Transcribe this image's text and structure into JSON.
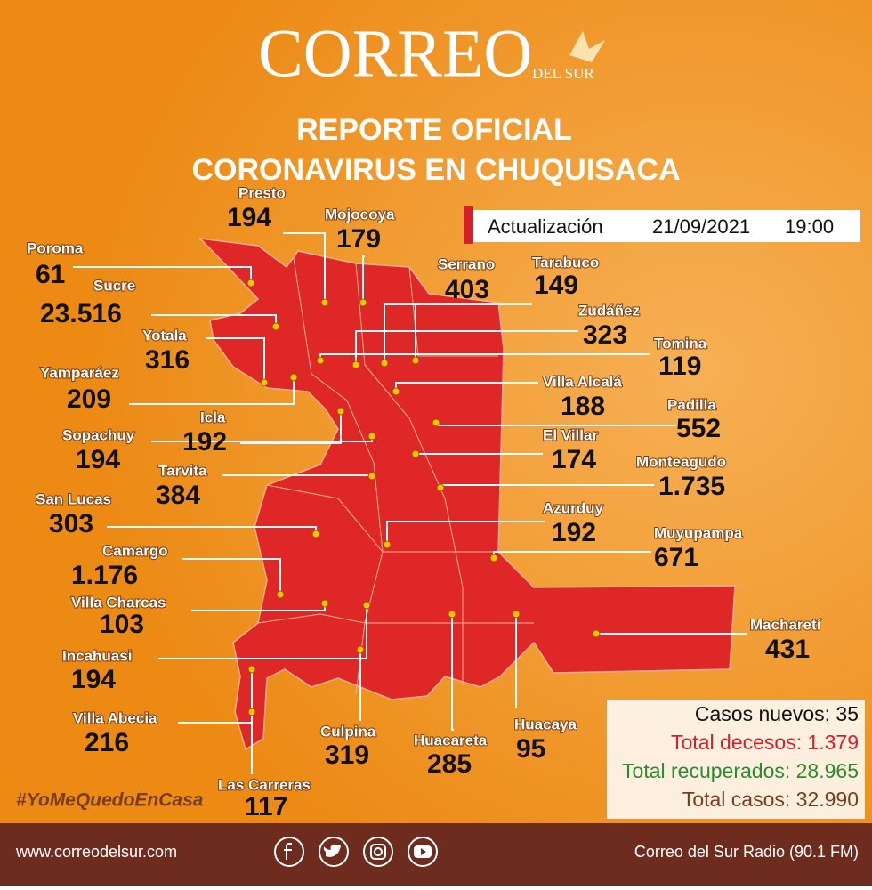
{
  "header": {
    "logo": "CORREO",
    "logo_sub": "DEL SUR",
    "title_line1": "REPORTE OFICIAL",
    "title_line2": "CORONAVIRUS EN CHUQUISACA"
  },
  "update": {
    "label": "Actualización",
    "date": "21/09/2021",
    "time": "19:00"
  },
  "municipalities": [
    {
      "name": "Presto",
      "cases": "194"
    },
    {
      "name": "Mojocoya",
      "cases": "179"
    },
    {
      "name": "Poroma",
      "cases": "61"
    },
    {
      "name": "Sucre",
      "cases": "23.516"
    },
    {
      "name": "Serrano",
      "cases": "403"
    },
    {
      "name": "Tarabuco",
      "cases": "149"
    },
    {
      "name": "Zudáñez",
      "cases": "323"
    },
    {
      "name": "Tomina",
      "cases": "119"
    },
    {
      "name": "Yotala",
      "cases": "316"
    },
    {
      "name": "Yamparáez",
      "cases": "209"
    },
    {
      "name": "Villa Alcalá",
      "cases": "188"
    },
    {
      "name": "Padilla",
      "cases": "552"
    },
    {
      "name": "Icla",
      "cases": "192"
    },
    {
      "name": "Sopachuy",
      "cases": "194"
    },
    {
      "name": "El Villar",
      "cases": "174"
    },
    {
      "name": "Monteagudo",
      "cases": "1.735"
    },
    {
      "name": "Tarvita",
      "cases": "384"
    },
    {
      "name": "San Lucas",
      "cases": "303"
    },
    {
      "name": "Azurduy",
      "cases": "192"
    },
    {
      "name": "Muyupampa",
      "cases": "671"
    },
    {
      "name": "Camargo",
      "cases": "1.176"
    },
    {
      "name": "Villa Charcas",
      "cases": "103"
    },
    {
      "name": "Macharetí",
      "cases": "431"
    },
    {
      "name": "Incahuasi",
      "cases": "194"
    },
    {
      "name": "Villa Abecia",
      "cases": "216"
    },
    {
      "name": "Culpina",
      "cases": "319"
    },
    {
      "name": "Huacareta",
      "cases": "285"
    },
    {
      "name": "Huacaya",
      "cases": "95"
    },
    {
      "name": "Las Carreras",
      "cases": "117"
    }
  ],
  "summary": [
    {
      "text": "Casos nuevos: 35",
      "color": "#111111"
    },
    {
      "text": "Total decesos: 1.379",
      "color": "#d8202a"
    },
    {
      "text": "Total recuperados: 28.965",
      "color": "#2f8a2f"
    },
    {
      "text": "Total casos: 32.990",
      "color": "#7a3b1e"
    }
  ],
  "hashtag": "#YoMeQuedoEnCasa",
  "footer": {
    "website": "www.correodelsur.com",
    "radio": "Correo del Sur Radio (90.1 FM)"
  }
}
